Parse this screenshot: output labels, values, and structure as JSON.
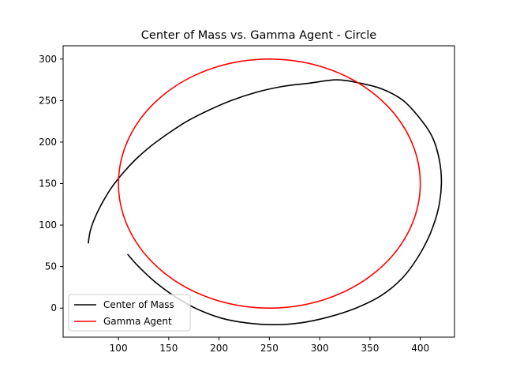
{
  "chart_data": {
    "type": "line",
    "title": "Center of Mass vs. Gamma Agent - Circle",
    "xlabel": "",
    "ylabel": "",
    "xlim": [
      45,
      434
    ],
    "ylim": [
      -35,
      316
    ],
    "xticks": [
      100,
      150,
      200,
      250,
      300,
      350,
      400
    ],
    "yticks": [
      0,
      50,
      100,
      150,
      200,
      250,
      300
    ],
    "grid": false,
    "legend_position": "lower left",
    "series": [
      {
        "name": "Center of Mass",
        "color": "#000000",
        "points": [
          [
            70,
            78
          ],
          [
            72,
            93
          ],
          [
            77,
            110
          ],
          [
            84,
            127
          ],
          [
            93,
            145
          ],
          [
            104,
            162
          ],
          [
            117,
            179
          ],
          [
            132,
            195
          ],
          [
            149,
            210
          ],
          [
            168,
            225
          ],
          [
            189,
            238
          ],
          [
            212,
            250
          ],
          [
            237,
            260
          ],
          [
            263,
            267
          ],
          [
            290,
            271
          ],
          [
            317,
            275
          ],
          [
            340,
            271
          ],
          [
            362,
            264
          ],
          [
            382,
            251
          ],
          [
            398,
            231
          ],
          [
            412,
            206
          ],
          [
            419,
            178
          ],
          [
            421,
            150
          ],
          [
            418,
            120
          ],
          [
            410,
            90
          ],
          [
            398,
            62
          ],
          [
            382,
            36
          ],
          [
            361,
            15
          ],
          [
            336,
            0
          ],
          [
            308,
            -11
          ],
          [
            280,
            -18
          ],
          [
            255,
            -20
          ],
          [
            228,
            -18
          ],
          [
            202,
            -12
          ],
          [
            178,
            -1
          ],
          [
            156,
            14
          ],
          [
            136,
            32
          ],
          [
            120,
            50
          ],
          [
            109,
            65
          ]
        ]
      },
      {
        "name": "Gamma Agent",
        "color": "#ff0000",
        "circle": {
          "cx": 250,
          "cy": 150,
          "rx": 150,
          "ry": 150
        },
        "points": [
          [
            400,
            150
          ],
          [
            395,
            189
          ],
          [
            380,
            225
          ],
          [
            356,
            256
          ],
          [
            325,
            280
          ],
          [
            289,
            295
          ],
          [
            250,
            300
          ],
          [
            211,
            295
          ],
          [
            175,
            280
          ],
          [
            144,
            256
          ],
          [
            120,
            225
          ],
          [
            105,
            189
          ],
          [
            100,
            150
          ],
          [
            105,
            111
          ],
          [
            120,
            75
          ],
          [
            144,
            44
          ],
          [
            175,
            20
          ],
          [
            211,
            5
          ],
          [
            250,
            0
          ],
          [
            289,
            5
          ],
          [
            325,
            20
          ],
          [
            356,
            44
          ],
          [
            380,
            75
          ],
          [
            395,
            111
          ],
          [
            400,
            150
          ]
        ]
      }
    ]
  }
}
